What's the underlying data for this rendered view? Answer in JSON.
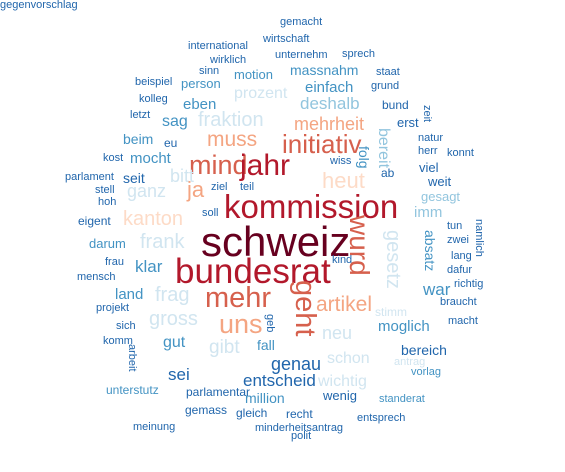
{
  "palette": {
    "darkest": "#67001f",
    "dark_red": "#b2182b",
    "red": "#d6604d",
    "salmon": "#f4a582",
    "peach": "#fddbc7",
    "pale_blue": "#d1e5f0",
    "light_blue": "#92c5de",
    "mid_blue": "#4393c3",
    "dark_blue": "#2166ac"
  },
  "words": [
    {
      "text": "gemacht",
      "color": "#2166ac"
    },
    {
      "text": "wirtschaft",
      "color": "#2166ac"
    },
    {
      "text": "international",
      "color": "#2166ac"
    },
    {
      "text": "sprech",
      "color": "#2166ac"
    },
    {
      "text": "wirklich",
      "color": "#2166ac"
    },
    {
      "text": "unternehm",
      "color": "#2166ac"
    },
    {
      "text": "sinn",
      "color": "#2166ac"
    },
    {
      "text": "motion",
      "color": "#4393c3"
    },
    {
      "text": "massnahm",
      "color": "#4393c3"
    },
    {
      "text": "staat",
      "color": "#2166ac"
    },
    {
      "text": "zeit",
      "color": "#2166ac"
    },
    {
      "text": "beispiel",
      "color": "#2166ac"
    },
    {
      "text": "person",
      "color": "#4393c3"
    },
    {
      "text": "einfach",
      "color": "#4393c3"
    },
    {
      "text": "grund",
      "color": "#2166ac"
    },
    {
      "text": "kolleg",
      "color": "#2166ac"
    },
    {
      "text": "prozent",
      "color": "#d1e5f0"
    },
    {
      "text": "letzt",
      "color": "#2166ac"
    },
    {
      "text": "eben",
      "color": "#4393c3"
    },
    {
      "text": "deshalb",
      "color": "#92c5de"
    },
    {
      "text": "bund",
      "color": "#2166ac"
    },
    {
      "text": "fraktion",
      "color": "#d1e5f0"
    },
    {
      "text": "mehrheit",
      "color": "#f4a582"
    },
    {
      "text": "sag",
      "color": "#4393c3"
    },
    {
      "text": "erst",
      "color": "#2166ac"
    },
    {
      "text": "natur",
      "color": "#2166ac"
    },
    {
      "text": "beim",
      "color": "#4393c3"
    },
    {
      "text": "muss",
      "color": "#f4a582"
    },
    {
      "text": "initiativ",
      "color": "#d6604d"
    },
    {
      "text": "bereit",
      "color": "#92c5de"
    },
    {
      "text": "herr",
      "color": "#2166ac"
    },
    {
      "text": "eu",
      "color": "#2166ac"
    },
    {
      "text": "konnt",
      "color": "#2166ac"
    },
    {
      "text": "kost",
      "color": "#2166ac"
    },
    {
      "text": "mocht",
      "color": "#4393c3"
    },
    {
      "text": "mind",
      "color": "#d6604d"
    },
    {
      "text": "jahr",
      "color": "#b2182b"
    },
    {
      "text": "folg",
      "color": "#4393c3"
    },
    {
      "text": "wiss",
      "color": "#2166ac"
    },
    {
      "text": "viel",
      "color": "#2166ac"
    },
    {
      "text": "parlament",
      "color": "#2166ac"
    },
    {
      "text": "seit",
      "color": "#2166ac"
    },
    {
      "text": "bitt",
      "color": "#d1e5f0"
    },
    {
      "text": "heut",
      "color": "#fddbc7"
    },
    {
      "text": "ab",
      "color": "#2166ac"
    },
    {
      "text": "weit",
      "color": "#2166ac"
    },
    {
      "text": "stell",
      "color": "#2166ac"
    },
    {
      "text": "ganz",
      "color": "#d1e5f0"
    },
    {
      "text": "ja",
      "color": "#f4a582"
    },
    {
      "text": "ziel",
      "color": "#2166ac"
    },
    {
      "text": "teil",
      "color": "#2166ac"
    },
    {
      "text": "gesagt",
      "color": "#92c5de"
    },
    {
      "text": "hoh",
      "color": "#2166ac"
    },
    {
      "text": "kommission",
      "color": "#b2182b"
    },
    {
      "text": "imm",
      "color": "#92c5de"
    },
    {
      "text": "eigent",
      "color": "#2166ac"
    },
    {
      "text": "kanton",
      "color": "#fddbc7"
    },
    {
      "text": "soll",
      "color": "#2166ac"
    },
    {
      "text": "tun",
      "color": "#2166ac"
    },
    {
      "text": "darum",
      "color": "#4393c3"
    },
    {
      "text": "frank",
      "color": "#d1e5f0"
    },
    {
      "text": "schweiz",
      "color": "#67001f"
    },
    {
      "text": "wurd",
      "color": "#d6604d"
    },
    {
      "text": "gesetz",
      "color": "#d1e5f0"
    },
    {
      "text": "zwei",
      "color": "#2166ac"
    },
    {
      "text": "namlich",
      "color": "#2166ac"
    },
    {
      "text": "frau",
      "color": "#2166ac"
    },
    {
      "text": "absatz",
      "color": "#4393c3"
    },
    {
      "text": "lang",
      "color": "#2166ac"
    },
    {
      "text": "mensch",
      "color": "#2166ac"
    },
    {
      "text": "klar",
      "color": "#4393c3"
    },
    {
      "text": "bundesrat",
      "color": "#b2182b"
    },
    {
      "text": "kind",
      "color": "#2166ac"
    },
    {
      "text": "dafur",
      "color": "#2166ac"
    },
    {
      "text": "war",
      "color": "#4393c3"
    },
    {
      "text": "richtig",
      "color": "#2166ac"
    },
    {
      "text": "land",
      "color": "#4393c3"
    },
    {
      "text": "frag",
      "color": "#d1e5f0"
    },
    {
      "text": "mehr",
      "color": "#d6604d"
    },
    {
      "text": "geht",
      "color": "#d6604d"
    },
    {
      "text": "artikel",
      "color": "#f4a582"
    },
    {
      "text": "braucht",
      "color": "#2166ac"
    },
    {
      "text": "projekt",
      "color": "#2166ac"
    },
    {
      "text": "gross",
      "color": "#d1e5f0"
    },
    {
      "text": "uns",
      "color": "#f4a582"
    },
    {
      "text": "moglich",
      "color": "#4393c3"
    },
    {
      "text": "stimm",
      "color": "#d1e5f0"
    },
    {
      "text": "macht",
      "color": "#2166ac"
    },
    {
      "text": "sich",
      "color": "#2166ac"
    },
    {
      "text": "geb",
      "color": "#2166ac"
    },
    {
      "text": "neu",
      "color": "#d1e5f0"
    },
    {
      "text": "komm",
      "color": "#2166ac"
    },
    {
      "text": "gut",
      "color": "#4393c3"
    },
    {
      "text": "gibt",
      "color": "#d1e5f0"
    },
    {
      "text": "fall",
      "color": "#4393c3"
    },
    {
      "text": "bereich",
      "color": "#2166ac"
    },
    {
      "text": "arbeit",
      "color": "#2166ac"
    },
    {
      "text": "genau",
      "color": "#2166ac"
    },
    {
      "text": "schon",
      "color": "#d1e5f0"
    },
    {
      "text": "antrag",
      "color": "#d1e5f0"
    },
    {
      "text": "sei",
      "color": "#2166ac"
    },
    {
      "text": "vorlag",
      "color": "#4393c3"
    },
    {
      "text": "entscheid",
      "color": "#2166ac"
    },
    {
      "text": "wichtig",
      "color": "#d1e5f0"
    },
    {
      "text": "unterstutz",
      "color": "#4393c3"
    },
    {
      "text": "parlamentar",
      "color": "#2166ac"
    },
    {
      "text": "wenig",
      "color": "#2166ac"
    },
    {
      "text": "million",
      "color": "#4393c3"
    },
    {
      "text": "standerat",
      "color": "#4393c3"
    },
    {
      "text": "gemass",
      "color": "#2166ac"
    },
    {
      "text": "gleich",
      "color": "#2166ac"
    },
    {
      "text": "recht",
      "color": "#2166ac"
    },
    {
      "text": "entsprech",
      "color": "#2166ac"
    },
    {
      "text": "meinung",
      "color": "#2166ac"
    },
    {
      "text": "minderheitsantrag",
      "color": "#2166ac"
    },
    {
      "text": "polit",
      "color": "#2166ac"
    },
    {
      "text": "gegenvorschlag",
      "color": "#2166ac"
    }
  ]
}
